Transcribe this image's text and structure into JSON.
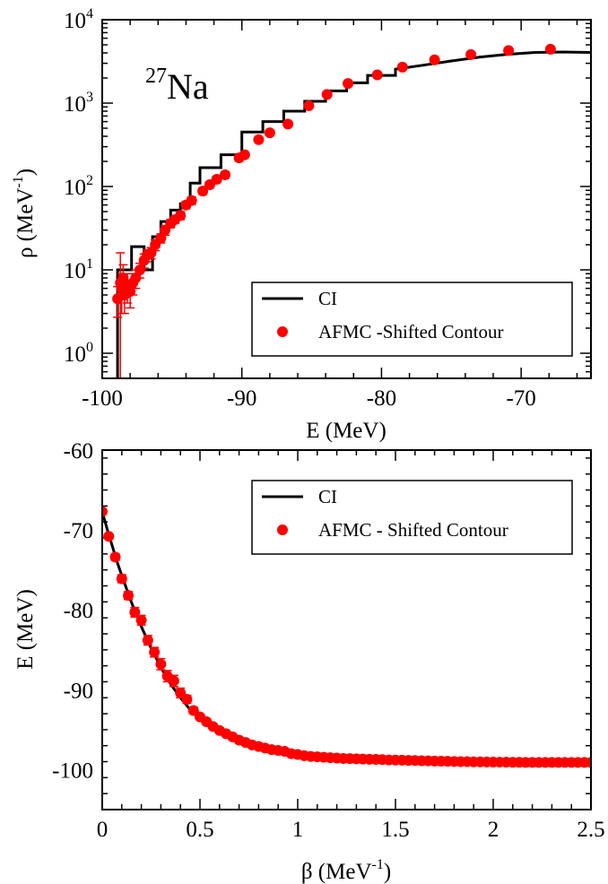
{
  "colors": {
    "ci": "#000000",
    "afmc": "#ff0000",
    "axis": "#000000"
  },
  "chart_data": [
    {
      "type": "line",
      "annotation": {
        "sup": "27",
        "main": "Na"
      },
      "xlabel": "E (MeV)",
      "ylabel": {
        "main": "ρ (MeV",
        "sup": "-1",
        "close": ")"
      },
      "xlim": [
        -100,
        -65
      ],
      "ylim": [
        0.5,
        10000
      ],
      "yscale": "log",
      "xticks": [
        -100,
        -90,
        -80,
        -70
      ],
      "xtick_labels": [
        "-100",
        "-90",
        "-80",
        "-70"
      ],
      "yticks": [
        1,
        10,
        100,
        1000,
        10000
      ],
      "ytick_labels": [
        {
          "base": "10",
          "exp": "0"
        },
        {
          "base": "10",
          "exp": "1"
        },
        {
          "base": "10",
          "exp": "2"
        },
        {
          "base": "10",
          "exp": "3"
        },
        {
          "base": "10",
          "exp": "4"
        }
      ],
      "legend": {
        "position": "bottom-right",
        "entries": [
          {
            "label": "CI",
            "kind": "line"
          },
          {
            "label": "AFMC -Shifted Contour",
            "kind": "marker"
          }
        ]
      },
      "series": [
        {
          "name": "CI",
          "style": "step",
          "points": [
            [
              -98.9,
              0.3
            ],
            [
              -98.9,
              10
            ],
            [
              -97.9,
              10
            ],
            [
              -97.9,
              19
            ],
            [
              -97.0,
              19
            ],
            [
              -97.0,
              10
            ],
            [
              -96.4,
              10
            ],
            [
              -96.4,
              25
            ],
            [
              -95.8,
              25
            ],
            [
              -95.8,
              38
            ],
            [
              -95.1,
              38
            ],
            [
              -95.1,
              52
            ],
            [
              -94.4,
              52
            ],
            [
              -94.4,
              62
            ],
            [
              -93.7,
              62
            ],
            [
              -93.7,
              110
            ],
            [
              -93.0,
              110
            ],
            [
              -93.0,
              168
            ],
            [
              -91.5,
              168
            ],
            [
              -91.5,
              240
            ],
            [
              -90.0,
              240
            ],
            [
              -90.0,
              450
            ],
            [
              -88.5,
              450
            ],
            [
              -88.5,
              600
            ],
            [
              -87.0,
              600
            ],
            [
              -87.0,
              800
            ],
            [
              -85.5,
              800
            ],
            [
              -85.5,
              1050
            ],
            [
              -84.0,
              1050
            ],
            [
              -84.0,
              1400
            ],
            [
              -82.5,
              1400
            ],
            [
              -82.5,
              1750
            ],
            [
              -81.0,
              1750
            ],
            [
              -81.0,
              2150
            ],
            [
              -79.0,
              2150
            ],
            [
              -79.0,
              2550
            ],
            [
              -77.0,
              2850
            ],
            [
              -75.0,
              3200
            ],
            [
              -73.0,
              3550
            ],
            [
              -71.0,
              3850
            ],
            [
              -69.0,
              4050
            ],
            [
              -67.0,
              4100
            ],
            [
              -65.0,
              4050
            ]
          ]
        },
        {
          "name": "AFMC -Shifted Contour",
          "style": "markers",
          "points": [
            [
              -98.9,
              4.5,
              1.8
            ],
            [
              -98.7,
              7,
              9
            ],
            [
              -98.6,
              6,
              3
            ],
            [
              -98.5,
              8,
              3.5
            ],
            [
              -98.4,
              5,
              2
            ],
            [
              -98.2,
              6.5,
              2.5
            ],
            [
              -98.0,
              5.5,
              2
            ],
            [
              -97.8,
              7,
              2
            ],
            [
              -97.6,
              8,
              2
            ],
            [
              -97.3,
              10,
              2
            ],
            [
              -97.0,
              13,
              2.5
            ],
            [
              -96.8,
              15,
              2.5
            ],
            [
              -96.5,
              16,
              2.5
            ],
            [
              -96.2,
              20,
              3
            ],
            [
              -95.8,
              24,
              3
            ],
            [
              -95.5,
              30,
              4
            ],
            [
              -95.1,
              36,
              4
            ],
            [
              -94.8,
              40,
              4
            ],
            [
              -94.4,
              45,
              5
            ],
            [
              -94.0,
              60,
              6
            ],
            [
              -93.6,
              68,
              7
            ],
            [
              -92.8,
              88,
              8
            ],
            [
              -92.3,
              105,
              9
            ],
            [
              -91.8,
              122,
              10
            ],
            [
              -91.2,
              138,
              12
            ],
            [
              -90.2,
              220,
              18
            ],
            [
              -89.8,
              240,
              18
            ],
            [
              -88.8,
              365,
              25
            ],
            [
              -88.0,
              440,
              30
            ],
            [
              -86.7,
              560,
              35
            ],
            [
              -85.2,
              930,
              50
            ],
            [
              -83.9,
              1270,
              70
            ],
            [
              -82.4,
              1720,
              90
            ],
            [
              -80.3,
              2180,
              110
            ],
            [
              -78.5,
              2700,
              130
            ],
            [
              -76.2,
              3300,
              160
            ],
            [
              -73.6,
              3820,
              180
            ],
            [
              -70.9,
              4270,
              200
            ],
            [
              -67.9,
              4430,
              210
            ]
          ]
        }
      ]
    },
    {
      "type": "line",
      "xlabel": {
        "main": "β  (MeV",
        "sup": "-1",
        "close": ")"
      },
      "ylabel": "E (MeV)",
      "xlim": [
        0,
        2.5
      ],
      "ylim": [
        -105,
        -60
      ],
      "xticks": [
        0,
        0.5,
        1,
        1.5,
        2,
        2.5
      ],
      "xtick_labels": [
        "0",
        "0.5",
        "1",
        "1.5",
        "2",
        "2.5"
      ],
      "yticks": [
        -100,
        -90,
        -80,
        -70,
        -60
      ],
      "ytick_labels": [
        "-100",
        "-90",
        "-80",
        "-70",
        "-60"
      ],
      "legend": {
        "position": "top-right",
        "entries": [
          {
            "label": "CI",
            "kind": "line"
          },
          {
            "label": "AFMC - Shifted Contour",
            "kind": "marker"
          }
        ]
      },
      "series": [
        {
          "name": "CI",
          "style": "line",
          "points": [
            [
              0,
              -67.7
            ],
            [
              0.025,
              -69.9
            ],
            [
              0.05,
              -71.9
            ],
            [
              0.075,
              -73.9
            ],
            [
              0.1,
              -75.7
            ],
            [
              0.15,
              -79.1
            ],
            [
              0.2,
              -82.1
            ],
            [
              0.25,
              -84.8
            ],
            [
              0.3,
              -87.2
            ],
            [
              0.35,
              -89.3
            ],
            [
              0.4,
              -91.0
            ],
            [
              0.45,
              -92.5
            ],
            [
              0.5,
              -93.6
            ],
            [
              0.6,
              -95.3
            ],
            [
              0.7,
              -96.4
            ],
            [
              0.8,
              -97.2
            ],
            [
              0.9,
              -97.8
            ],
            [
              1.0,
              -98.2
            ],
            [
              1.2,
              -98.6
            ],
            [
              1.4,
              -98.8
            ],
            [
              1.6,
              -98.9
            ],
            [
              1.8,
              -99.0
            ],
            [
              2.0,
              -99.05
            ],
            [
              2.2,
              -99.1
            ],
            [
              2.5,
              -99.1
            ]
          ]
        },
        {
          "name": "AFMC - Shifted Contour",
          "style": "markers",
          "points": [
            [
              0,
              -67.7,
              0.3
            ],
            [
              0.0333,
              -70.8,
              0.3
            ],
            [
              0.0667,
              -73.4,
              0.4
            ],
            [
              0.1,
              -76.1,
              0.5
            ],
            [
              0.1333,
              -78.2,
              0.5
            ],
            [
              0.1667,
              -80.3,
              0.6
            ],
            [
              0.2,
              -81.3,
              0.6
            ],
            [
              0.2333,
              -83.8,
              0.6
            ],
            [
              0.2667,
              -85.3,
              0.6
            ],
            [
              0.3,
              -86.8,
              0.7
            ],
            [
              0.3333,
              -88.3,
              0.7
            ],
            [
              0.3667,
              -88.9,
              0.7
            ],
            [
              0.4,
              -90.4,
              0.6
            ],
            [
              0.4333,
              -91.2,
              0.5
            ],
            [
              0.4667,
              -92.6,
              0.4
            ],
            [
              0.5,
              -93.4,
              0.3
            ],
            [
              0.5333,
              -94.0,
              0.3
            ],
            [
              0.5667,
              -94.6,
              0.3
            ],
            [
              0.6,
              -95.1,
              0.3
            ],
            [
              0.6333,
              -95.5,
              0.3
            ],
            [
              0.6667,
              -95.9,
              0.3
            ],
            [
              0.7,
              -96.3,
              0.3
            ],
            [
              0.7333,
              -96.6,
              0.3
            ],
            [
              0.7667,
              -96.9,
              0.3
            ],
            [
              0.8,
              -97.1,
              0.3
            ],
            [
              0.8333,
              -97.3,
              0.3
            ],
            [
              0.8667,
              -97.5,
              0.3
            ],
            [
              0.9,
              -97.6,
              0.3
            ],
            [
              0.9333,
              -97.7,
              0.3
            ],
            [
              0.9667,
              -98.0,
              0.3
            ],
            [
              1.0,
              -98.1,
              0.3
            ],
            [
              1.0333,
              -98.25,
              0.3
            ],
            [
              1.0667,
              -98.35,
              0.3
            ],
            [
              1.1,
              -98.4,
              0.3
            ],
            [
              1.1333,
              -98.45,
              0.3
            ],
            [
              1.1667,
              -98.5,
              0.3
            ],
            [
              1.2,
              -98.55,
              0.3
            ],
            [
              1.2333,
              -98.6,
              0.3
            ],
            [
              1.2667,
              -98.62,
              0.3
            ],
            [
              1.3,
              -98.65,
              0.3
            ],
            [
              1.3333,
              -98.68,
              0.3
            ],
            [
              1.3667,
              -98.7,
              0.3
            ],
            [
              1.4,
              -98.72,
              0.3
            ],
            [
              1.4333,
              -98.75,
              0.3
            ],
            [
              1.4667,
              -98.78,
              0.3
            ],
            [
              1.5,
              -98.8,
              0.3
            ],
            [
              1.5333,
              -98.82,
              0.3
            ],
            [
              1.5667,
              -98.84,
              0.3
            ],
            [
              1.6,
              -98.86,
              0.3
            ],
            [
              1.6333,
              -98.88,
              0.3
            ],
            [
              1.6667,
              -98.9,
              0.3
            ],
            [
              1.7,
              -98.92,
              0.3
            ],
            [
              1.7333,
              -98.94,
              0.3
            ],
            [
              1.7667,
              -98.96,
              0.3
            ],
            [
              1.8,
              -98.98,
              0.3
            ],
            [
              1.8333,
              -99.0,
              0.3
            ],
            [
              1.8667,
              -99.0,
              0.3
            ],
            [
              1.9,
              -99.02,
              0.3
            ],
            [
              1.9333,
              -99.03,
              0.3
            ],
            [
              1.9667,
              -99.04,
              0.3
            ],
            [
              2.0,
              -99.05,
              0.3
            ],
            [
              2.0333,
              -99.06,
              0.3
            ],
            [
              2.0667,
              -99.07,
              0.3
            ],
            [
              2.1,
              -99.08,
              0.3
            ],
            [
              2.1333,
              -99.08,
              0.3
            ],
            [
              2.1667,
              -99.09,
              0.3
            ],
            [
              2.2,
              -99.09,
              0.3
            ],
            [
              2.2333,
              -99.1,
              0.3
            ],
            [
              2.2667,
              -99.1,
              0.3
            ],
            [
              2.3,
              -99.1,
              0.3
            ],
            [
              2.3333,
              -99.1,
              0.3
            ],
            [
              2.3667,
              -99.1,
              0.3
            ],
            [
              2.4,
              -99.1,
              0.3
            ],
            [
              2.4333,
              -99.1,
              0.3
            ],
            [
              2.4667,
              -99.1,
              0.3
            ],
            [
              2.5,
              -99.1,
              0.3
            ]
          ]
        }
      ]
    }
  ]
}
